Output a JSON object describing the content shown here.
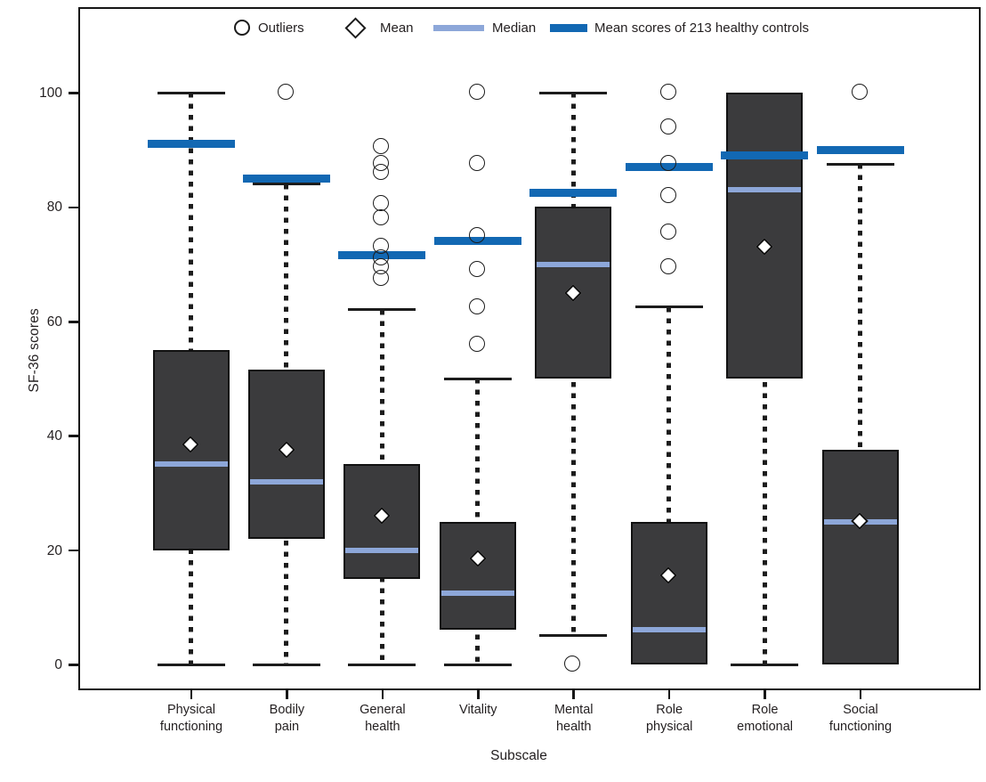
{
  "chart_data": {
    "type": "boxplot",
    "title": "",
    "xlabel": "Subscale",
    "ylabel": "SF-36 scores",
    "ylim": [
      0,
      114
    ],
    "yticks": [
      0,
      20,
      40,
      60,
      80,
      100
    ],
    "grid": false,
    "legend_position": "top-inside",
    "legend": [
      {
        "symbol": "circle",
        "label": "Outliers"
      },
      {
        "symbol": "diamond",
        "label": "Mean"
      },
      {
        "symbol": "median-line",
        "label": "Median",
        "color": "#8da7d9"
      },
      {
        "symbol": "controls-line",
        "label": "Mean scores of 213 healthy controls",
        "color": "#1268b3"
      }
    ],
    "categories": [
      "Physical functioning",
      "Bodily pain",
      "General health",
      "Vitality",
      "Mental health",
      "Role physical",
      "Role emotional",
      "Social functioning"
    ],
    "category_label_lines": [
      [
        "Physical",
        "functioning"
      ],
      [
        "Bodily",
        "pain"
      ],
      [
        "General",
        "health"
      ],
      [
        "Vitality"
      ],
      [
        "Mental",
        "health"
      ],
      [
        "Role",
        "physical"
      ],
      [
        "Role",
        "emotional"
      ],
      [
        "Social",
        "functioning"
      ]
    ],
    "boxes": [
      {
        "category": "Physical functioning",
        "whisker_low": 0,
        "q1": 20,
        "median": 35,
        "q3": 55,
        "whisker_high": 100,
        "mean": 38.5,
        "healthy_control_mean": 91,
        "outliers": []
      },
      {
        "category": "Bodily pain",
        "whisker_low": 0,
        "q1": 22,
        "median": 32,
        "q3": 51.5,
        "whisker_high": 84,
        "mean": 37.5,
        "healthy_control_mean": 85,
        "outliers": [
          100
        ]
      },
      {
        "category": "General health",
        "whisker_low": 0,
        "q1": 15,
        "median": 20,
        "q3": 35,
        "whisker_high": 62,
        "mean": 26,
        "healthy_control_mean": 71.5,
        "outliers": [
          90.5,
          87.5,
          86,
          80.5,
          78,
          73,
          71,
          69.5,
          67.5
        ]
      },
      {
        "category": "Vitality",
        "whisker_low": 0,
        "q1": 6,
        "median": 12.5,
        "q3": 25,
        "whisker_high": 50,
        "mean": 18.5,
        "healthy_control_mean": 74,
        "outliers": [
          100,
          87.5,
          75,
          69,
          62.5,
          56
        ]
      },
      {
        "category": "Mental health",
        "whisker_low": 5,
        "q1": 50,
        "median": 70,
        "q3": 80,
        "whisker_high": 100,
        "mean": 65,
        "healthy_control_mean": 82.5,
        "outliers": [
          0
        ]
      },
      {
        "category": "Role physical",
        "whisker_low": null,
        "q1": 0,
        "median": 6,
        "q3": 25,
        "whisker_high": 62.5,
        "mean": 15.5,
        "healthy_control_mean": 87,
        "outliers": [
          100,
          94,
          87.5,
          82,
          75.5,
          69.5
        ]
      },
      {
        "category": "Role emotional",
        "whisker_low": 0,
        "q1": 50,
        "median": 83,
        "q3": 100,
        "whisker_high": null,
        "mean": 73,
        "healthy_control_mean": 89,
        "outliers": []
      },
      {
        "category": "Social functioning",
        "whisker_low": null,
        "q1": 0,
        "median": 25,
        "q3": 37.5,
        "whisker_high": 87.5,
        "mean": 25,
        "healthy_control_mean": 90,
        "outliers": [
          100
        ]
      }
    ],
    "colors": {
      "box_fill": "#3b3b3d",
      "box_border": "#111111",
      "median": "#8da7d9",
      "healthy_controls": "#1268b3",
      "whisker": "#1c1c1c",
      "text": "#231f20",
      "background": "#ffffff"
    }
  }
}
